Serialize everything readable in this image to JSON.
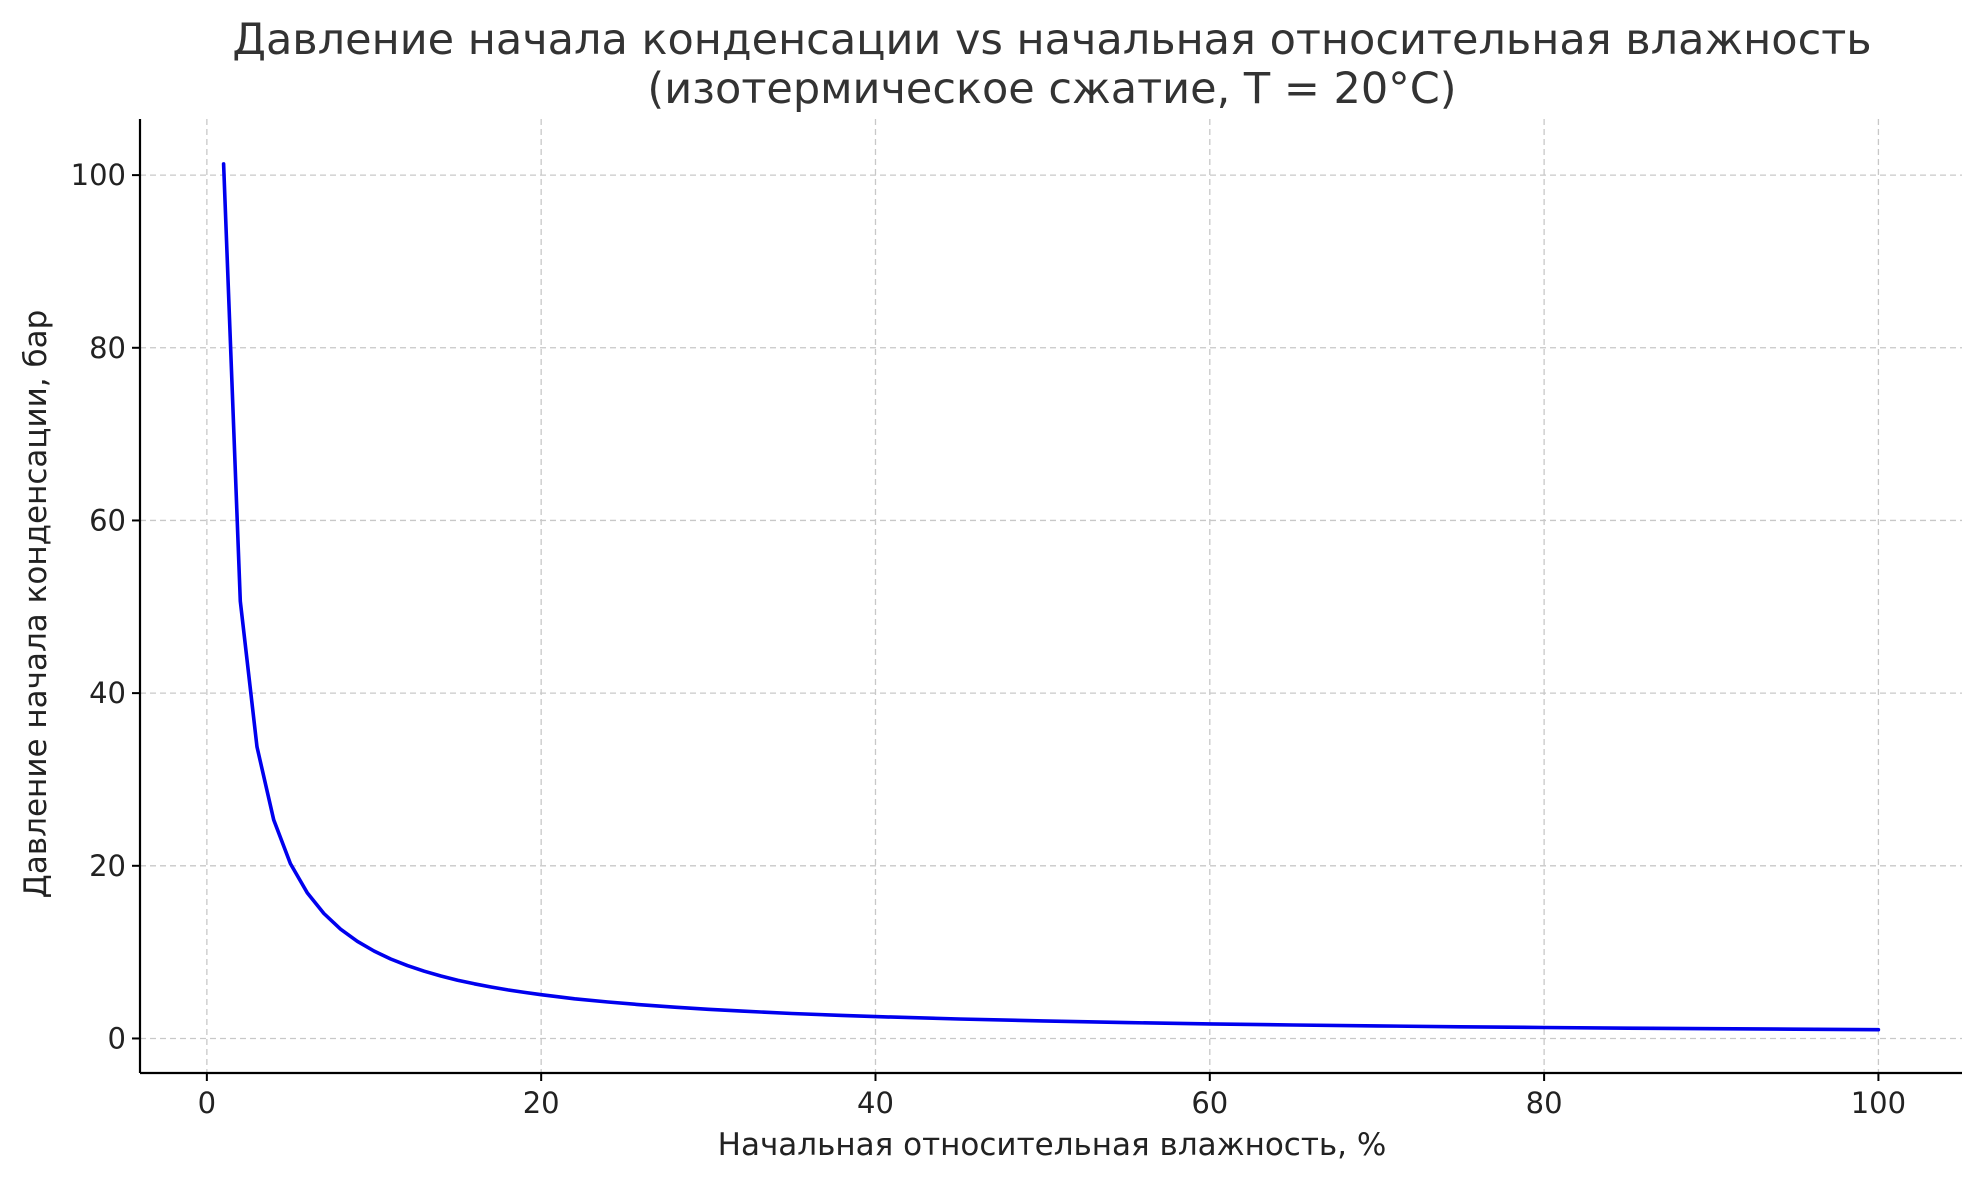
{
  "chart_data": {
    "type": "line",
    "title": "Давление начала конденсации vs начальная относительная влажность",
    "subtitle": "(изотермическое сжатие, T = 20°C)",
    "xlabel": "Начальная относительная влажность, %",
    "ylabel": "Давление начала конденсации, бар",
    "xlim": [
      -4,
      105
    ],
    "ylim": [
      -4,
      106.5
    ],
    "xticks": [
      0,
      20,
      40,
      60,
      80,
      100
    ],
    "yticks": [
      0,
      20,
      40,
      60,
      80,
      100
    ],
    "xtick_labels": [
      "0",
      "20",
      "40",
      "60",
      "80",
      "100"
    ],
    "ytick_labels": [
      "0",
      "20",
      "40",
      "60",
      "80",
      "100"
    ],
    "grid": true,
    "line_color": "#0000ee",
    "series": [
      {
        "x": [
          1,
          2,
          3,
          4,
          5,
          6,
          7,
          8,
          9,
          10,
          11,
          12,
          13,
          14,
          15,
          16,
          17,
          18,
          19,
          20,
          22,
          24,
          26,
          28,
          30,
          32,
          35,
          38,
          40,
          45,
          50,
          55,
          60,
          65,
          70,
          75,
          80,
          85,
          90,
          95,
          100
        ],
        "y": [
          101.3,
          50.65,
          33.77,
          25.33,
          20.26,
          16.88,
          14.47,
          12.66,
          11.26,
          10.13,
          9.21,
          8.44,
          7.79,
          7.24,
          6.75,
          6.33,
          5.96,
          5.63,
          5.33,
          5.07,
          4.6,
          4.22,
          3.9,
          3.62,
          3.38,
          3.17,
          2.89,
          2.67,
          2.53,
          2.25,
          2.03,
          1.84,
          1.69,
          1.56,
          1.45,
          1.35,
          1.27,
          1.19,
          1.13,
          1.07,
          1.01
        ]
      }
    ]
  }
}
